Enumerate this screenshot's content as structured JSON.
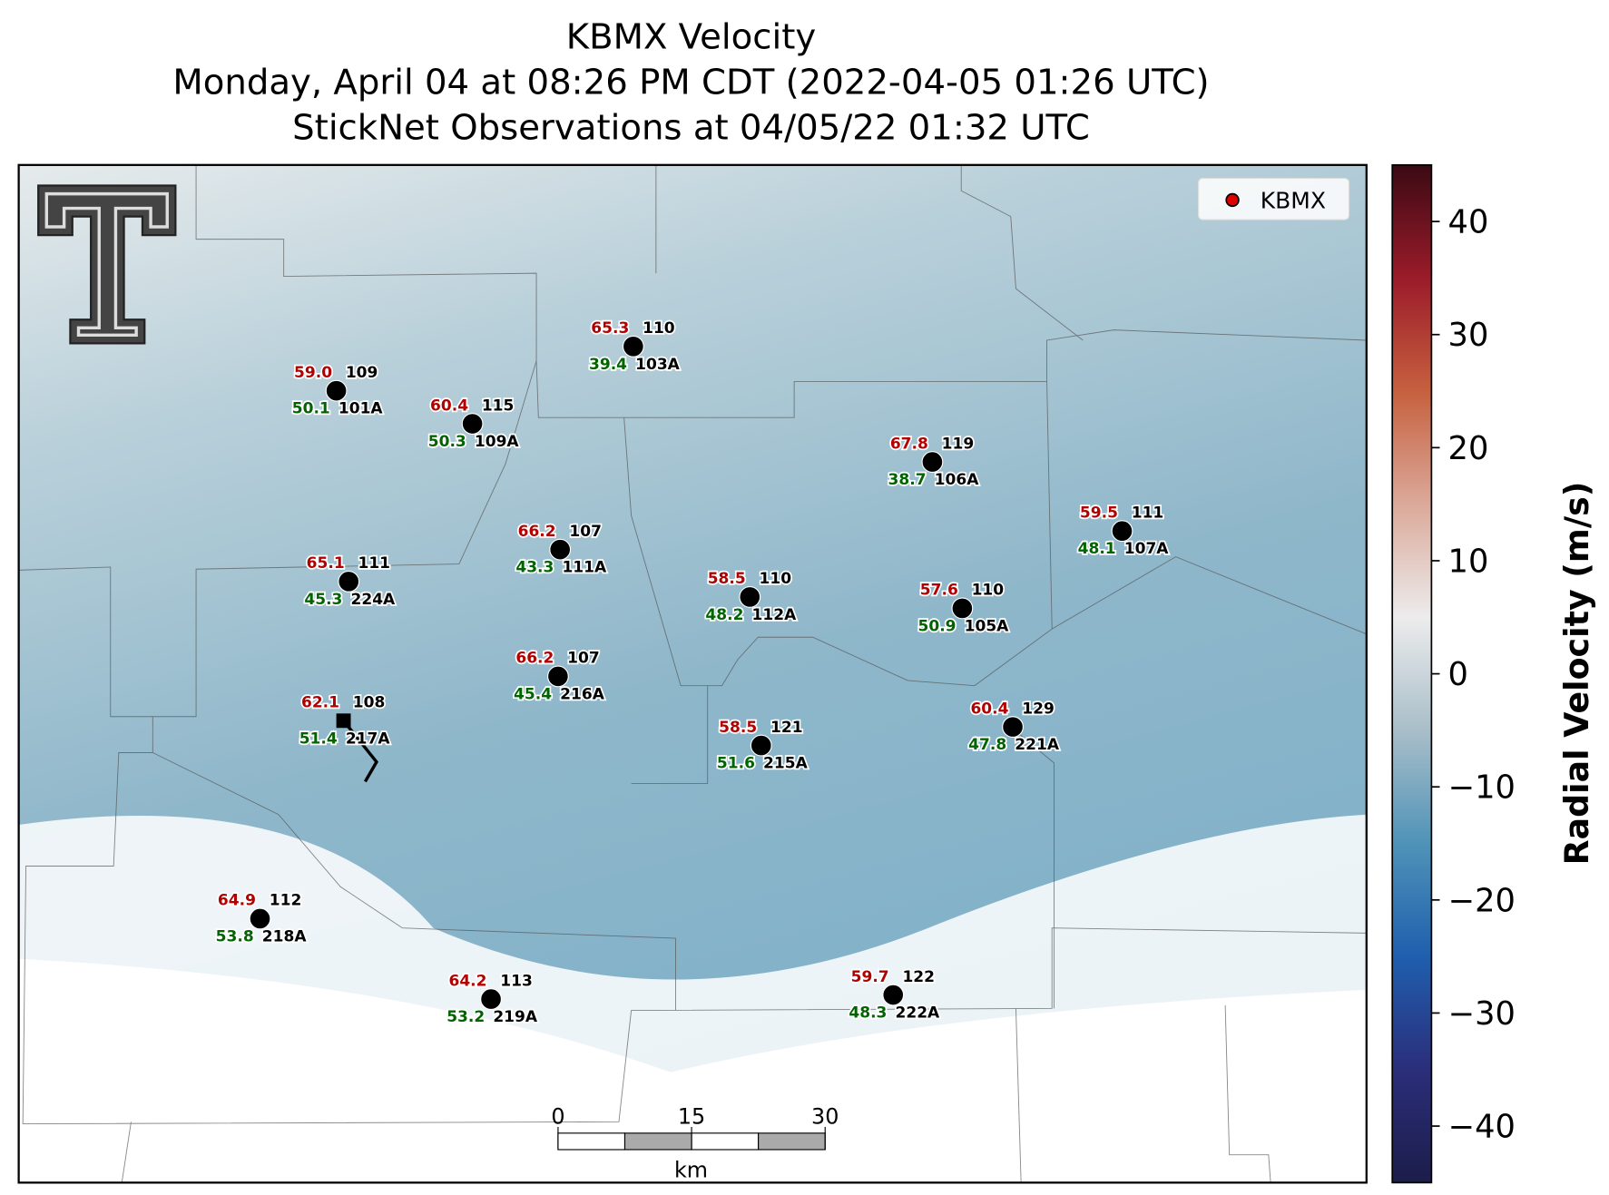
{
  "title": [
    "KBMX Velocity",
    "Monday, April 04 at 08:26 PM CDT (2022-04-05 01:26 UTC)",
    "StickNet Observations at 04/05/22 01:32 UTC"
  ],
  "legend": {
    "label": "KBMX",
    "color": "#e00000"
  },
  "temperature_color": "#b30000",
  "dewpoint_color": "#006400",
  "stations": [
    {
      "id": "101A",
      "temperature": "59.0",
      "direction": "109",
      "dewpoint": "50.1",
      "marker": "circle"
    },
    {
      "id": "109A",
      "temperature": "60.4",
      "direction": "115",
      "dewpoint": "50.3",
      "marker": "circle"
    },
    {
      "id": "103A",
      "temperature": "65.3",
      "direction": "110",
      "dewpoint": "39.4",
      "marker": "circle"
    },
    {
      "id": "106A",
      "temperature": "67.8",
      "direction": "119",
      "dewpoint": "38.7",
      "marker": "circle"
    },
    {
      "id": "107A",
      "temperature": "59.5",
      "direction": "111",
      "dewpoint": "48.1",
      "marker": "circle"
    },
    {
      "id": "224A",
      "temperature": "65.1",
      "direction": "111",
      "dewpoint": "45.3",
      "marker": "circle"
    },
    {
      "id": "111A",
      "temperature": "66.2",
      "direction": "107",
      "dewpoint": "43.3",
      "marker": "circle"
    },
    {
      "id": "112A",
      "temperature": "58.5",
      "direction": "110",
      "dewpoint": "48.2",
      "marker": "circle"
    },
    {
      "id": "105A",
      "temperature": "57.6",
      "direction": "110",
      "dewpoint": "50.9",
      "marker": "circle"
    },
    {
      "id": "216A",
      "temperature": "66.2",
      "direction": "107",
      "dewpoint": "45.4",
      "marker": "circle"
    },
    {
      "id": "217A",
      "temperature": "62.1",
      "direction": "108",
      "dewpoint": "51.4",
      "marker": "square"
    },
    {
      "id": "215A",
      "temperature": "58.5",
      "direction": "121",
      "dewpoint": "51.6",
      "marker": "circle"
    },
    {
      "id": "221A",
      "temperature": "60.4",
      "direction": "129",
      "dewpoint": "47.8",
      "marker": "circle"
    },
    {
      "id": "218A",
      "temperature": "64.9",
      "direction": "112",
      "dewpoint": "53.8",
      "marker": "circle"
    },
    {
      "id": "219A",
      "temperature": "64.2",
      "direction": "113",
      "dewpoint": "53.2",
      "marker": "circle"
    },
    {
      "id": "222A",
      "temperature": "59.7",
      "direction": "122",
      "dewpoint": "48.3",
      "marker": "circle"
    }
  ],
  "scalebar": {
    "ticks": [
      0,
      15,
      30
    ],
    "unit": "km"
  },
  "colorbar": {
    "label": "Radial Velocity (m/s)",
    "lim": [
      -45,
      45
    ],
    "ticks": [
      {
        "value": 40,
        "label": "40"
      },
      {
        "value": 30,
        "label": "30"
      },
      {
        "value": 20,
        "label": "20"
      },
      {
        "value": 10,
        "label": "10"
      },
      {
        "value": 0,
        "label": "0"
      },
      {
        "value": -10,
        "label": "−10"
      },
      {
        "value": -20,
        "label": "−20"
      },
      {
        "value": -30,
        "label": "−30"
      },
      {
        "value": -40,
        "label": "−40"
      }
    ],
    "colors": [
      "#1c1d4a",
      "#2b2e7a",
      "#1f5fae",
      "#4f93b8",
      "#a9bec9",
      "#ececec",
      "#dba99a",
      "#c6603f",
      "#9b1b2a",
      "#3b0a14"
    ]
  }
}
